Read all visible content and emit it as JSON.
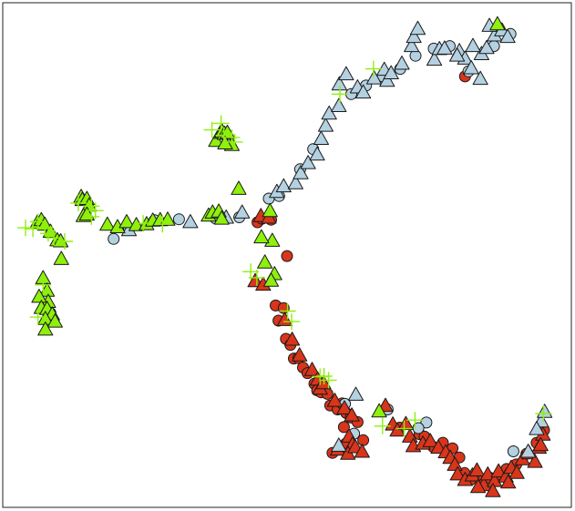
{
  "chart_data": {
    "type": "scatter",
    "title": "",
    "xlabel": "",
    "ylabel": "",
    "axes_visible": false,
    "frame": true,
    "xlim": [
      0,
      100
    ],
    "ylim": [
      0,
      100
    ],
    "colors": {
      "red": "#d8351b",
      "blue": "#b4d1e2",
      "green": "#8ef00c",
      "outline": "#1a1a1a"
    },
    "series": [
      {
        "marker": "circle",
        "color": "red",
        "points": [
          [
            8.4,
            38.5
          ],
          [
            44.8,
            56.5
          ],
          [
            45.6,
            57.2
          ],
          [
            47.2,
            57.0
          ],
          [
            48.0,
            40.0
          ],
          [
            49.4,
            39.5
          ],
          [
            48.5,
            37.0
          ],
          [
            49.8,
            33.4
          ],
          [
            50.6,
            32.2
          ],
          [
            51.2,
            29.5
          ],
          [
            52.0,
            29.6
          ],
          [
            52.8,
            27.7
          ],
          [
            53.6,
            26.6
          ],
          [
            54.8,
            24.5
          ],
          [
            55.3,
            23.2
          ],
          [
            56.0,
            22.8
          ],
          [
            57.1,
            22.5
          ],
          [
            57.6,
            20.2
          ],
          [
            58.9,
            19.4
          ],
          [
            59.7,
            20.6
          ],
          [
            60.4,
            18.7
          ],
          [
            61.2,
            17.8
          ],
          [
            60.0,
            15.9
          ],
          [
            62.4,
            16.9
          ],
          [
            58.0,
            10.8
          ],
          [
            59.6,
            11.5
          ],
          [
            60.3,
            12.6
          ],
          [
            63.4,
            13.3
          ],
          [
            69.8,
            15.8
          ],
          [
            73.3,
            14.5
          ],
          [
            74.2,
            14.0
          ],
          [
            75.7,
            12.0
          ],
          [
            77.4,
            12.8
          ],
          [
            79.1,
            11.7
          ],
          [
            80.3,
            9.9
          ],
          [
            81.2,
            6.8
          ],
          [
            82.3,
            5.5
          ],
          [
            84.4,
            5.3
          ],
          [
            85.6,
            5.9
          ],
          [
            87.4,
            6.5
          ],
          [
            88.6,
            7.6
          ],
          [
            90.3,
            8.5
          ],
          [
            92.1,
            10.6
          ],
          [
            93.9,
            12.8
          ],
          [
            95.2,
            15.3
          ],
          [
            50.0,
            49.8
          ],
          [
            81.3,
            85.4
          ]
        ]
      },
      {
        "marker": "triangle",
        "color": "red",
        "points": [
          [
            45.4,
            57.7
          ],
          [
            46.8,
            57.4
          ],
          [
            44.4,
            44.8
          ],
          [
            45.8,
            44.1
          ],
          [
            49.6,
            37.1
          ],
          [
            50.9,
            33.2
          ],
          [
            52.2,
            30.1
          ],
          [
            54.4,
            27.2
          ],
          [
            55.4,
            25.3
          ],
          [
            55.8,
            23.5
          ],
          [
            56.4,
            24.6
          ],
          [
            58.4,
            21.1
          ],
          [
            60.1,
            19.6
          ],
          [
            61.4,
            18.2
          ],
          [
            60.9,
            14.0
          ],
          [
            61.5,
            12.4
          ],
          [
            58.9,
            11.4
          ],
          [
            60.7,
            10.6
          ],
          [
            62.0,
            11.9
          ],
          [
            63.2,
            11.0
          ],
          [
            67.3,
            20.1
          ],
          [
            68.6,
            16.4
          ],
          [
            69.4,
            15.2
          ],
          [
            70.9,
            16.5
          ],
          [
            71.6,
            14.0
          ],
          [
            72.2,
            12.1
          ],
          [
            73.9,
            12.6
          ],
          [
            75.2,
            13.1
          ],
          [
            76.6,
            11.8
          ],
          [
            77.9,
            10.9
          ],
          [
            78.7,
            9.8
          ],
          [
            79.5,
            8.4
          ],
          [
            80.0,
            6.5
          ],
          [
            81.3,
            5.4
          ],
          [
            82.6,
            6.3
          ],
          [
            83.4,
            7.3
          ],
          [
            84.6,
            4.4
          ],
          [
            85.3,
            6.5
          ],
          [
            86.5,
            5.2
          ],
          [
            87.2,
            7.1
          ],
          [
            88.5,
            6.1
          ],
          [
            89.4,
            7.8
          ],
          [
            90.4,
            6.8
          ],
          [
            91.4,
            9.5
          ],
          [
            92.6,
            10.7
          ],
          [
            93.6,
            9.0
          ],
          [
            94.3,
            11.8
          ],
          [
            95.0,
            14.4
          ],
          [
            94.6,
            12.3
          ],
          [
            83.6,
            4.0
          ],
          [
            86.2,
            3.2
          ],
          [
            88.9,
            4.9
          ]
        ]
      },
      {
        "marker": "circle",
        "color": "blue",
        "points": [
          [
            19.5,
            53.2
          ],
          [
            22.2,
            55.2
          ],
          [
            26.7,
            56.9
          ],
          [
            31.0,
            57.1
          ],
          [
            37.4,
            57.3
          ],
          [
            41.6,
            57.5
          ],
          [
            46.8,
            61.2
          ],
          [
            48.6,
            61.7
          ],
          [
            52.3,
            67.0
          ],
          [
            54.6,
            71.0
          ],
          [
            61.3,
            81.9
          ],
          [
            63.9,
            83.6
          ],
          [
            66.8,
            85.4
          ],
          [
            69.9,
            86.9
          ],
          [
            72.6,
            89.5
          ],
          [
            75.8,
            90.9
          ],
          [
            78.6,
            91.4
          ],
          [
            81.9,
            86.4
          ],
          [
            86.4,
            91.4
          ],
          [
            89.3,
            93.8
          ],
          [
            61.8,
            14.6
          ],
          [
            67.7,
            19.4
          ],
          [
            74.5,
            16.8
          ],
          [
            89.8,
            11.1
          ],
          [
            60.2,
            20.5
          ],
          [
            73.1,
            15.7
          ]
        ]
      },
      {
        "marker": "triangle",
        "color": "blue",
        "points": [
          [
            22.2,
            54.9
          ],
          [
            33.0,
            56.5
          ],
          [
            39.3,
            57.4
          ],
          [
            42.1,
            58.4
          ],
          [
            48.2,
            62.5
          ],
          [
            49.4,
            63.6
          ],
          [
            51.5,
            64.2
          ],
          [
            52.4,
            66.2
          ],
          [
            53.7,
            68.2
          ],
          [
            55.3,
            69.9
          ],
          [
            56.0,
            73.0
          ],
          [
            56.8,
            75.6
          ],
          [
            57.4,
            78.0
          ],
          [
            59.1,
            79.5
          ],
          [
            59.2,
            83.8
          ],
          [
            60.4,
            85.8
          ],
          [
            62.4,
            83.2
          ],
          [
            63.4,
            82.2
          ],
          [
            65.3,
            85.0
          ],
          [
            67.1,
            86.7
          ],
          [
            67.6,
            84.5
          ],
          [
            68.3,
            86.0
          ],
          [
            70.2,
            87.9
          ],
          [
            71.9,
            91.4
          ],
          [
            72.3,
            93.2
          ],
          [
            73.0,
            94.8
          ],
          [
            75.9,
            88.7
          ],
          [
            76.8,
            90.8
          ],
          [
            77.7,
            90.9
          ],
          [
            80.3,
            90.4
          ],
          [
            81.3,
            88.9
          ],
          [
            82.4,
            87.0
          ],
          [
            84.2,
            89.8
          ],
          [
            85.1,
            91.0
          ],
          [
            86.5,
            93.5
          ],
          [
            87.8,
            94.5
          ],
          [
            88.8,
            93.2
          ],
          [
            85.6,
            95.4
          ],
          [
            82.7,
            91.4
          ],
          [
            59.1,
            12.2
          ],
          [
            62.1,
            22.3
          ],
          [
            92.4,
            11.0
          ],
          [
            94.7,
            17.0
          ],
          [
            95.3,
            18.9
          ],
          [
            93.9,
            15.5
          ],
          [
            79.9,
            89.5
          ],
          [
            84.0,
            84.9
          ]
        ]
      },
      {
        "marker": "triangle",
        "color": "green",
        "points": [
          [
            6.1,
            56.4
          ],
          [
            6.8,
            56.9
          ],
          [
            7.4,
            56.0
          ],
          [
            8.4,
            54.6
          ],
          [
            9.6,
            52.9
          ],
          [
            10.2,
            52.7
          ],
          [
            13.8,
            61.5
          ],
          [
            14.0,
            60.9
          ],
          [
            14.8,
            61.1
          ],
          [
            15.2,
            59.8
          ],
          [
            14.2,
            57.7
          ],
          [
            14.8,
            58.0
          ],
          [
            18.4,
            56.0
          ],
          [
            20.2,
            55.5
          ],
          [
            21.8,
            56.5
          ],
          [
            23.5,
            55.9
          ],
          [
            25.3,
            56.1
          ],
          [
            26.4,
            56.8
          ],
          [
            27.7,
            56.9
          ],
          [
            29.0,
            57.0
          ],
          [
            36.2,
            57.8
          ],
          [
            36.9,
            58.4
          ],
          [
            38.0,
            58.6
          ],
          [
            38.5,
            57.2
          ],
          [
            41.5,
            63.1
          ],
          [
            47.0,
            58.7
          ],
          [
            47.4,
            52.8
          ],
          [
            46.1,
            48.5
          ],
          [
            47.8,
            46.2
          ],
          [
            47.2,
            44.9
          ],
          [
            45.5,
            53.5
          ],
          [
            37.5,
            72.6
          ],
          [
            38.3,
            74.2
          ],
          [
            38.6,
            74.4
          ],
          [
            39.0,
            74.0
          ],
          [
            39.5,
            74.2
          ],
          [
            40.3,
            71.8
          ],
          [
            39.1,
            72.1
          ],
          [
            10.3,
            49.2
          ],
          [
            7.1,
            45.4
          ],
          [
            7.8,
            42.9
          ],
          [
            8.0,
            40.7
          ],
          [
            6.4,
            41.7
          ],
          [
            6.8,
            39.5
          ],
          [
            7.8,
            39.3
          ],
          [
            8.7,
            38.2
          ],
          [
            7.5,
            37.3
          ],
          [
            9.2,
            36.8
          ],
          [
            7.5,
            35.2
          ],
          [
            66.2,
            19.0
          ],
          [
            87.0,
            95.7
          ]
        ]
      },
      {
        "marker": "cross",
        "color": "green",
        "points": [
          [
            4.0,
            55.4
          ],
          [
            5.3,
            55.2
          ],
          [
            6.2,
            56.6
          ],
          [
            7.4,
            55.5
          ],
          [
            8.0,
            54.3
          ],
          [
            9.0,
            53.4
          ],
          [
            10.9,
            52.7
          ],
          [
            13.3,
            60.3
          ],
          [
            15.6,
            59.7
          ],
          [
            15.6,
            57.6
          ],
          [
            16.3,
            58.8
          ],
          [
            24.7,
            56.3
          ],
          [
            28.1,
            56.1
          ],
          [
            38.4,
            76.1
          ],
          [
            38.9,
            73.7
          ],
          [
            40.3,
            73.3
          ],
          [
            40.8,
            72.4
          ],
          [
            36.8,
            74.8
          ],
          [
            43.6,
            46.7
          ],
          [
            44.7,
            45.5
          ],
          [
            50.1,
            38.9
          ],
          [
            50.8,
            36.8
          ],
          [
            55.8,
            25.9
          ],
          [
            56.5,
            26.0
          ],
          [
            57.3,
            25.2
          ],
          [
            66.8,
            16.1
          ],
          [
            70.6,
            15.6
          ],
          [
            72.5,
            17.3
          ],
          [
            59.3,
            81.9
          ],
          [
            65.2,
            86.9
          ],
          [
            6.2,
            37.7
          ],
          [
            7.1,
            44.1
          ],
          [
            95.1,
            18.6
          ]
        ]
      }
    ]
  }
}
